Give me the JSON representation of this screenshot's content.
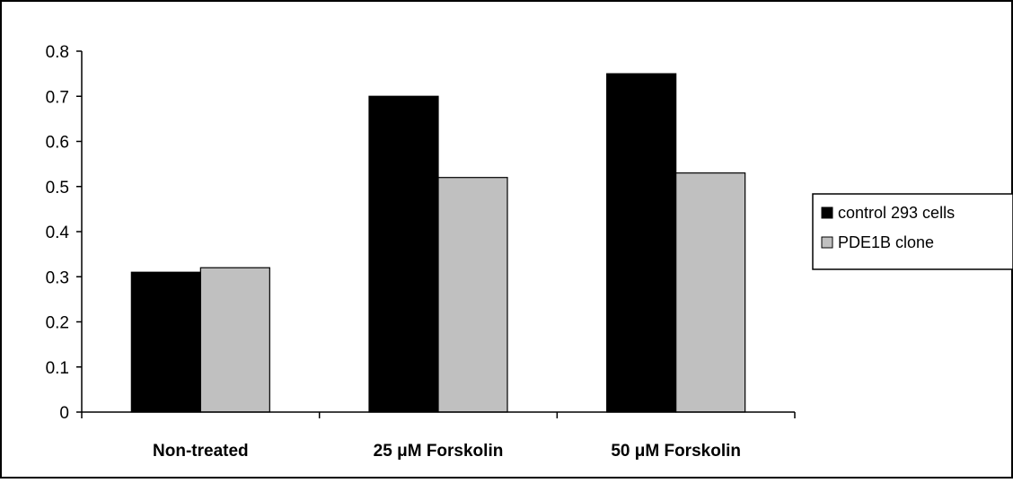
{
  "chart_data": {
    "type": "bar",
    "title": "",
    "xlabel": "",
    "ylabel": "",
    "categories": [
      "Non-treated",
      "25 μM Forskolin",
      "50 μM Forskolin"
    ],
    "series": [
      {
        "name": "control 293 cells",
        "values": [
          0.31,
          0.7,
          0.75
        ],
        "color": "#000000"
      },
      {
        "name": "PDE1B clone",
        "values": [
          0.32,
          0.52,
          0.53
        ],
        "color": "#c0c0c0"
      }
    ],
    "ylim": [
      0,
      0.8
    ],
    "yticks": [
      "0",
      "0.1",
      "0.2",
      "0.3",
      "0.4",
      "0.5",
      "0.6",
      "0.7",
      "0.8"
    ],
    "grid": false,
    "legend_position": "right"
  }
}
